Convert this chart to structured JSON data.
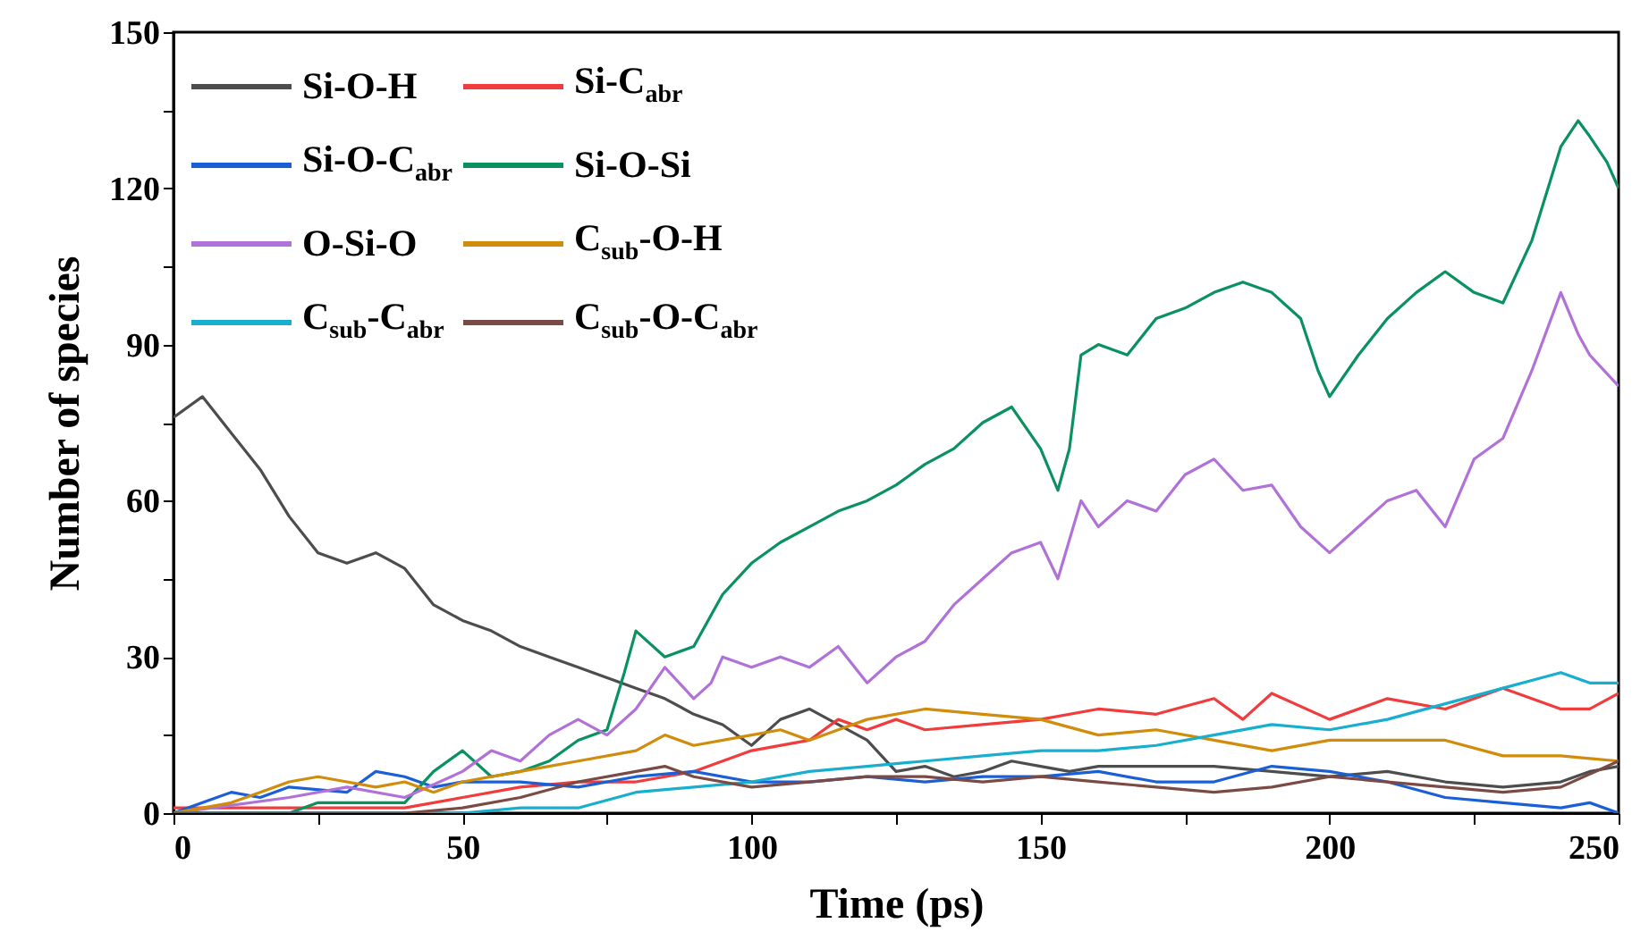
{
  "chart_data": {
    "type": "line",
    "xlabel": "Time (ps)",
    "ylabel": "Number of species",
    "xlim": [
      0,
      250
    ],
    "ylim": [
      0,
      150
    ],
    "xticks": [
      0,
      {
        "value": 25,
        "label": null
      },
      50,
      {
        "value": 75,
        "label": null
      },
      100,
      {
        "value": 125,
        "label": null
      },
      150,
      {
        "value": 175,
        "label": null
      },
      200,
      {
        "value": 225,
        "label": null
      },
      250
    ],
    "yticks": [
      0,
      {
        "value": 15,
        "label": null
      },
      30,
      {
        "value": 45,
        "label": null
      },
      60,
      {
        "value": 75,
        "label": null
      },
      90,
      {
        "value": 105,
        "label": null
      },
      120,
      {
        "value": 135,
        "label": null
      },
      150
    ],
    "legend": "top left",
    "grid": false,
    "marker": "none",
    "line_style": "solid",
    "series": [
      {
        "name": "Si-O-H",
        "color": "#4d4d4d",
        "x": [
          0,
          5,
          10,
          15,
          20,
          25,
          30,
          35,
          40,
          45,
          50,
          55,
          60,
          65,
          70,
          75,
          80,
          85,
          90,
          95,
          100,
          105,
          110,
          115,
          120,
          125,
          130,
          135,
          140,
          145,
          150,
          155,
          160,
          170,
          180,
          190,
          200,
          210,
          220,
          230,
          240,
          245,
          250
        ],
        "values": [
          76,
          80,
          73,
          66,
          57,
          50,
          48,
          50,
          47,
          40,
          37,
          35,
          32,
          30,
          28,
          26,
          24,
          22,
          19,
          17,
          13,
          18,
          20,
          17,
          14,
          8,
          9,
          7,
          8,
          10,
          9,
          8,
          9,
          9,
          9,
          8,
          7,
          8,
          6,
          5,
          6,
          8,
          9
        ]
      },
      {
        "name": "Si-C$_{abr}$",
        "color": "#f03c3c",
        "x": [
          0,
          20,
          40,
          50,
          60,
          70,
          80,
          90,
          100,
          110,
          115,
          120,
          125,
          130,
          140,
          150,
          160,
          170,
          180,
          185,
          190,
          200,
          210,
          220,
          230,
          240,
          245,
          250
        ],
        "values": [
          1,
          1,
          1,
          3,
          5,
          6,
          6,
          8,
          12,
          14,
          18,
          16,
          18,
          16,
          17,
          18,
          20,
          19,
          22,
          18,
          23,
          18,
          22,
          20,
          24,
          20,
          20,
          23
        ]
      },
      {
        "name": "Si-O-C$_{abr}$",
        "color": "#1a5fd6",
        "x": [
          0,
          5,
          10,
          15,
          20,
          30,
          35,
          40,
          45,
          50,
          60,
          70,
          80,
          90,
          100,
          110,
          120,
          130,
          140,
          150,
          160,
          170,
          180,
          190,
          200,
          210,
          220,
          230,
          240,
          245,
          250
        ],
        "values": [
          0,
          2,
          4,
          3,
          5,
          4,
          8,
          7,
          5,
          6,
          6,
          5,
          7,
          8,
          6,
          6,
          7,
          6,
          7,
          7,
          8,
          6,
          6,
          9,
          8,
          6,
          3,
          2,
          1,
          2,
          0
        ]
      },
      {
        "name": "Si-O-Si",
        "color": "#0a9160",
        "x": [
          0,
          20,
          25,
          40,
          45,
          50,
          55,
          60,
          65,
          70,
          75,
          78,
          80,
          85,
          90,
          93,
          95,
          100,
          105,
          110,
          115,
          120,
          125,
          130,
          135,
          140,
          145,
          150,
          153,
          155,
          157,
          160,
          165,
          170,
          175,
          180,
          185,
          190,
          195,
          198,
          200,
          205,
          210,
          215,
          220,
          225,
          230,
          235,
          240,
          243,
          245,
          248,
          250
        ],
        "values": [
          0,
          0,
          2,
          2,
          8,
          12,
          7,
          8,
          10,
          14,
          16,
          27,
          35,
          30,
          32,
          38,
          42,
          48,
          52,
          55,
          58,
          60,
          63,
          67,
          70,
          75,
          78,
          70,
          62,
          70,
          88,
          90,
          88,
          95,
          97,
          100,
          102,
          100,
          95,
          85,
          80,
          88,
          95,
          100,
          104,
          100,
          98,
          110,
          128,
          133,
          130,
          125,
          120
        ]
      },
      {
        "name": "O-Si-O",
        "color": "#b072d8",
        "x": [
          0,
          20,
          30,
          40,
          50,
          55,
          60,
          65,
          70,
          75,
          80,
          85,
          90,
          93,
          95,
          100,
          105,
          110,
          115,
          120,
          125,
          130,
          135,
          140,
          145,
          150,
          153,
          157,
          160,
          165,
          170,
          175,
          180,
          185,
          190,
          195,
          200,
          205,
          210,
          215,
          220,
          225,
          230,
          235,
          240,
          243,
          245,
          250
        ],
        "values": [
          0,
          3,
          5,
          3,
          8,
          12,
          10,
          15,
          18,
          15,
          20,
          28,
          22,
          25,
          30,
          28,
          30,
          28,
          32,
          25,
          30,
          33,
          40,
          45,
          50,
          52,
          45,
          60,
          55,
          60,
          58,
          65,
          68,
          62,
          63,
          55,
          50,
          55,
          60,
          62,
          55,
          68,
          72,
          85,
          100,
          92,
          88,
          82
        ]
      },
      {
        "name": "C$_{sub}$-O-H",
        "color": "#d08c0a",
        "x": [
          0,
          10,
          15,
          20,
          25,
          30,
          35,
          40,
          45,
          50,
          60,
          70,
          80,
          85,
          90,
          100,
          105,
          110,
          115,
          120,
          130,
          140,
          150,
          160,
          170,
          180,
          190,
          200,
          210,
          220,
          230,
          240,
          250
        ],
        "values": [
          0,
          2,
          4,
          6,
          7,
          6,
          5,
          6,
          4,
          6,
          8,
          10,
          12,
          15,
          13,
          15,
          16,
          14,
          16,
          18,
          20,
          19,
          18,
          15,
          16,
          14,
          12,
          14,
          14,
          14,
          11,
          11,
          10
        ]
      },
      {
        "name": "C$_{sub}$-C$_{abr}$",
        "color": "#17aed0",
        "x": [
          0,
          50,
          60,
          70,
          80,
          90,
          100,
          110,
          120,
          130,
          140,
          150,
          160,
          170,
          180,
          190,
          200,
          210,
          220,
          230,
          240,
          245,
          250
        ],
        "values": [
          0,
          0,
          1,
          1,
          4,
          5,
          6,
          8,
          9,
          10,
          11,
          12,
          12,
          13,
          15,
          17,
          16,
          18,
          21,
          24,
          27,
          25,
          25
        ]
      },
      {
        "name": "C$_{sub}$-O-C$_{abr}$",
        "color": "#7a4a44",
        "x": [
          0,
          40,
          50,
          60,
          70,
          80,
          85,
          90,
          100,
          110,
          120,
          130,
          140,
          150,
          160,
          170,
          180,
          190,
          200,
          210,
          220,
          230,
          240,
          250
        ],
        "values": [
          0,
          0,
          1,
          3,
          6,
          8,
          9,
          7,
          5,
          6,
          7,
          7,
          6,
          7,
          6,
          5,
          4,
          5,
          7,
          6,
          5,
          4,
          5,
          10
        ]
      }
    ]
  }
}
